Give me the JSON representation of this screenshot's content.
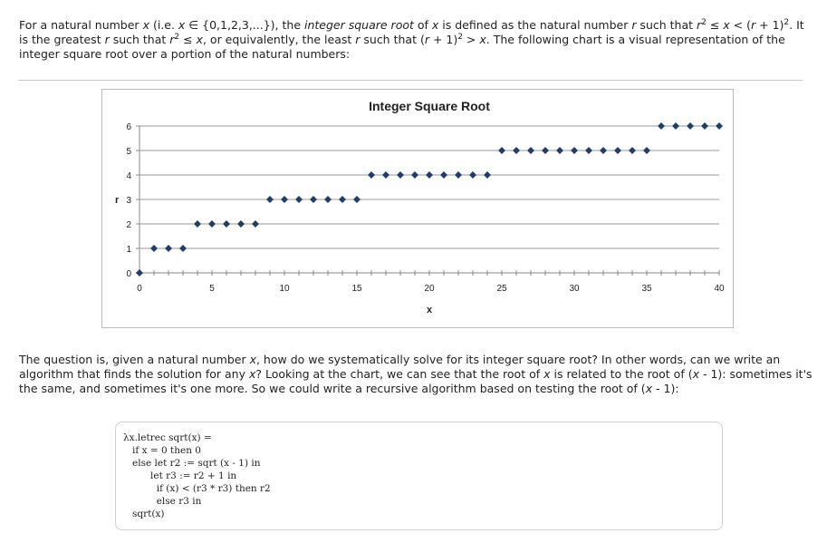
{
  "intro": {
    "line1_a": "For a natural number ",
    "line1_x": "x",
    "line1_b": " (i.e. ",
    "line1_x2": "x",
    "line1_c": " ∈ {0,1,2,3,...}), the ",
    "line1_term": "integer square root",
    "line1_d": " of ",
    "line1_x3": "x",
    "line1_e": " is defined as the natural number ",
    "line1_r": "r",
    "line1_f": " such that ",
    "line1_r2": "r",
    "line1_sup1": "2",
    "line1_g": " ≤ ",
    "line1_x4": "x",
    "line1_h": " < (",
    "line1_r3": "r",
    "line1_i": " + 1)",
    "line1_sup2": "2",
    "line1_j": ". It",
    "line2_a": "is the greatest ",
    "line2_r": "r",
    "line2_b": " such that ",
    "line2_r2": "r",
    "line2_sup1": "2",
    "line2_c": " ≤ ",
    "line2_x": "x",
    "line2_d": ", or equivalently, the least ",
    "line2_r3": "r",
    "line2_e": " such that (",
    "line2_r4": "r",
    "line2_f": " + 1)",
    "line2_sup2": "2",
    "line2_g": " > ",
    "line2_x2": "x",
    "line2_h": ". The following chart is a visual representation of the",
    "line3": "integer square root over a portion of the natural numbers:"
  },
  "question": {
    "l1_a": "The question is, given a natural number ",
    "l1_x": "x",
    "l1_b": ", how do we systematically solve for its integer square root? In other words, can we write an",
    "l2_a": "algorithm that finds the solution for any ",
    "l2_x": "x",
    "l2_b": "? Looking at the chart, we can see that the root of ",
    "l2_x2": "x",
    "l2_c": " is related to the root of (",
    "l2_x3": "x",
    "l2_d": " - 1): sometimes it's",
    "l3_a": "the same, and sometimes it's one more. So we could write a recursive algorithm based on testing the root of (",
    "l3_x": "x",
    "l3_b": " - 1):"
  },
  "code": "λx.letrec sqrt(x) =\n   if x = 0 then 0\n   else let r2 := sqrt (x - 1) in\n         let r3 := r2 + 1 in\n           if (x) < (r3 * r3) then r2\n           else r3 in\n   sqrt(x)",
  "chart_data": {
    "type": "scatter",
    "title": "Integer Square Root",
    "xlabel": "x",
    "ylabel": "r",
    "xlim": [
      0,
      40
    ],
    "ylim": [
      0,
      6
    ],
    "x_ticks": [
      0,
      5,
      10,
      15,
      20,
      25,
      30,
      35,
      40
    ],
    "y_ticks": [
      0,
      1,
      2,
      3,
      4,
      5,
      6
    ],
    "grid": true,
    "marker_color": "#1f3f6e",
    "x": [
      0,
      1,
      2,
      3,
      4,
      5,
      6,
      7,
      8,
      9,
      10,
      11,
      12,
      13,
      14,
      15,
      16,
      17,
      18,
      19,
      20,
      21,
      22,
      23,
      24,
      25,
      26,
      27,
      28,
      29,
      30,
      31,
      32,
      33,
      34,
      35,
      36,
      37,
      38,
      39,
      40
    ],
    "y": [
      0,
      1,
      1,
      1,
      2,
      2,
      2,
      2,
      2,
      3,
      3,
      3,
      3,
      3,
      3,
      3,
      4,
      4,
      4,
      4,
      4,
      4,
      4,
      4,
      4,
      5,
      5,
      5,
      5,
      5,
      5,
      5,
      5,
      5,
      5,
      5,
      6,
      6,
      6,
      6,
      6
    ]
  }
}
